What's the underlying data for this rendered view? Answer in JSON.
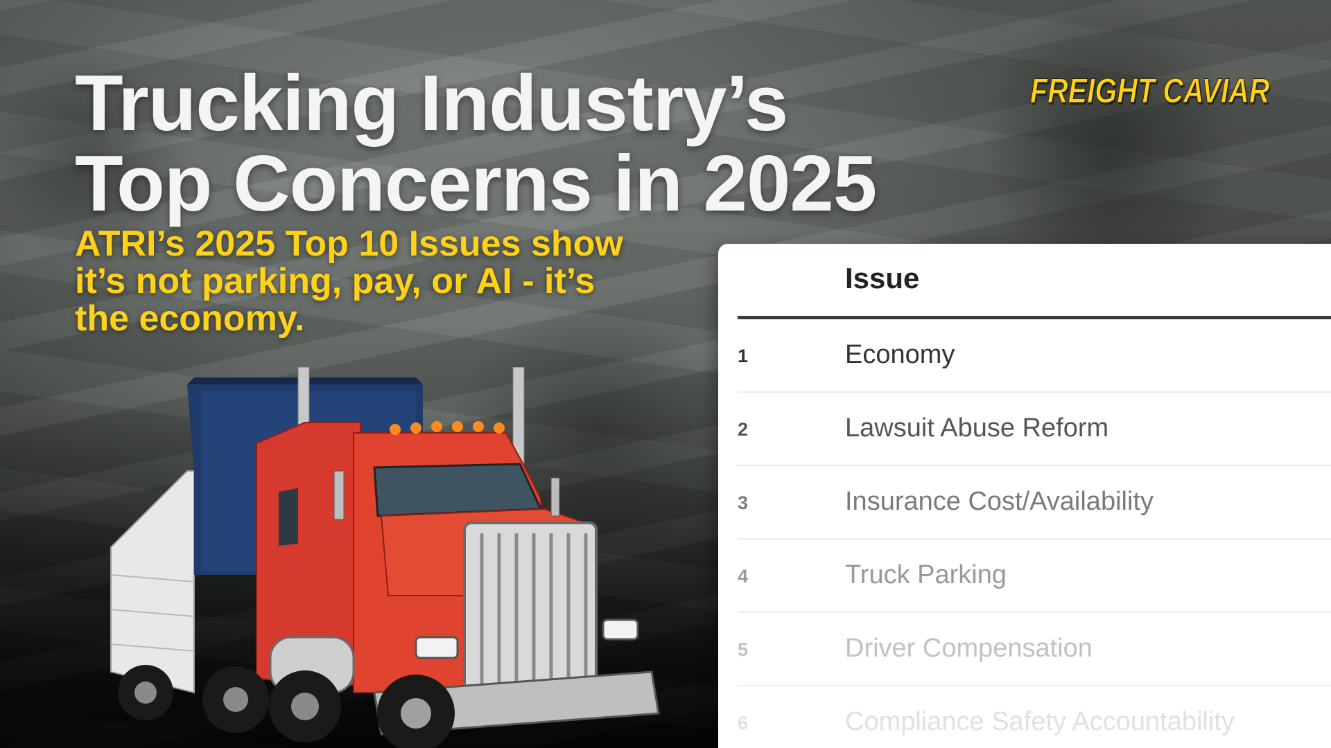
{
  "title": {
    "line1": "Trucking Industry’s",
    "line2": "Top Concerns in 2025"
  },
  "subtitle": {
    "line1": "ATRI’s 2025 Top 10 Issues show",
    "line2": "it’s not parking, pay, or AI - it’s",
    "line3": "the economy."
  },
  "brand": "FREIGHT CAVIAR",
  "colors": {
    "accent_yellow": "#ffd21a",
    "title_white": "#f4f4f2",
    "truck_red": "#d63a2e",
    "trailer_blue": "#1f3a6b"
  },
  "table": {
    "header": "Issue",
    "rows": [
      {
        "rank": "1",
        "issue": "Economy"
      },
      {
        "rank": "2",
        "issue": "Lawsuit Abuse Reform"
      },
      {
        "rank": "3",
        "issue": "Insurance Cost/Availability"
      },
      {
        "rank": "4",
        "issue": "Truck Parking"
      },
      {
        "rank": "5",
        "issue": "Driver Compensation"
      },
      {
        "rank": "6",
        "issue": "Compliance Safety Accountability"
      }
    ]
  },
  "icons": {
    "truck": "semi-truck-illustration",
    "background": "dollar-bills-background"
  }
}
